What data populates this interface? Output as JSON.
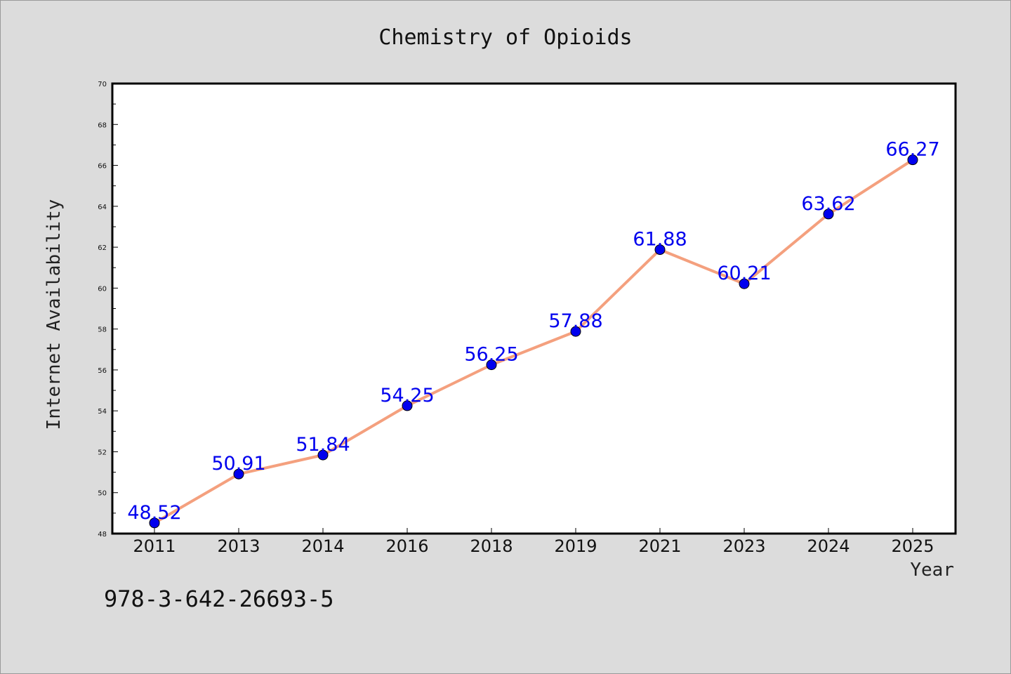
{
  "chart_data": {
    "type": "line",
    "title": "Chemistry of Opioids",
    "xlabel": "Year",
    "ylabel": "Internet Availability",
    "categories": [
      "2011",
      "2013",
      "2014",
      "2016",
      "2018",
      "2019",
      "2021",
      "2023",
      "2024",
      "2025"
    ],
    "values": [
      48.52,
      50.91,
      51.84,
      54.25,
      56.25,
      57.88,
      61.88,
      60.21,
      63.62,
      66.27
    ],
    "data_labels": [
      "48.52",
      "50.91",
      "51.84",
      "54.25",
      "56.25",
      "57.88",
      "61.88",
      "60.21",
      "63.62",
      "66.27"
    ],
    "ylim": [
      48,
      70
    ],
    "yticks": [
      "48",
      "50",
      "52",
      "54",
      "56",
      "58",
      "60",
      "62",
      "64",
      "66",
      "68",
      "70"
    ],
    "grid": false,
    "line_color": "#f4a07e",
    "marker_color": "#0000ee",
    "label_color": "#0000ee"
  },
  "annotation": "978-3-642-26693-5"
}
